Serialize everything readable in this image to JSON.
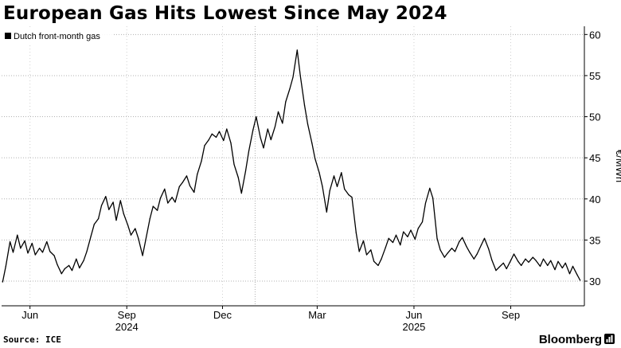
{
  "title": "European Gas Hits Lowest Since May 2024",
  "source": "Source: ICE",
  "brand": "Bloomberg",
  "chart_data": {
    "type": "line",
    "title": "European Gas Hits Lowest Since May 2024",
    "xlabel": "",
    "ylabel": "€/MWh",
    "y_axis_side": "right",
    "ylim": [
      27,
      61
    ],
    "yticks": [
      30,
      35,
      40,
      45,
      50,
      55,
      60
    ],
    "grid": "dotted",
    "legend": "top-left",
    "x_range": [
      "2024-05-05",
      "2025-11-10"
    ],
    "month_ticks": [
      {
        "label": "Jun",
        "date": "2024-06-01"
      },
      {
        "label": "Sep",
        "date": "2024-09-01"
      },
      {
        "label": "Dec",
        "date": "2024-12-01"
      },
      {
        "label": "Mar",
        "date": "2025-03-01"
      },
      {
        "label": "Jun",
        "date": "2025-06-01"
      },
      {
        "label": "Sep",
        "date": "2025-09-01"
      }
    ],
    "year_labels": [
      {
        "label": "2024",
        "date": "2024-09-01"
      },
      {
        "label": "2025",
        "date": "2025-06-01"
      }
    ],
    "series": [
      {
        "name": "Dutch front-month gas",
        "color": "#000000",
        "points": [
          [
            "2024-05-06",
            29.9
          ],
          [
            "2024-05-09",
            31.8
          ],
          [
            "2024-05-13",
            34.8
          ],
          [
            "2024-05-16",
            33.5
          ],
          [
            "2024-05-20",
            35.6
          ],
          [
            "2024-05-23",
            34.0
          ],
          [
            "2024-05-27",
            34.9
          ],
          [
            "2024-05-30",
            33.4
          ],
          [
            "2024-06-03",
            34.6
          ],
          [
            "2024-06-06",
            33.2
          ],
          [
            "2024-06-10",
            34.0
          ],
          [
            "2024-06-13",
            33.5
          ],
          [
            "2024-06-17",
            34.8
          ],
          [
            "2024-06-20",
            33.6
          ],
          [
            "2024-06-24",
            33.1
          ],
          [
            "2024-06-27",
            32.0
          ],
          [
            "2024-07-01",
            30.9
          ],
          [
            "2024-07-04",
            31.5
          ],
          [
            "2024-07-08",
            31.9
          ],
          [
            "2024-07-11",
            31.3
          ],
          [
            "2024-07-15",
            32.7
          ],
          [
            "2024-07-18",
            31.6
          ],
          [
            "2024-07-22",
            32.5
          ],
          [
            "2024-07-25",
            33.6
          ],
          [
            "2024-07-29",
            35.5
          ],
          [
            "2024-08-01",
            36.9
          ],
          [
            "2024-08-05",
            37.6
          ],
          [
            "2024-08-08",
            39.2
          ],
          [
            "2024-08-12",
            40.3
          ],
          [
            "2024-08-15",
            38.7
          ],
          [
            "2024-08-19",
            39.6
          ],
          [
            "2024-08-22",
            37.4
          ],
          [
            "2024-08-26",
            39.8
          ],
          [
            "2024-08-29",
            38.2
          ],
          [
            "2024-09-02",
            36.8
          ],
          [
            "2024-09-05",
            35.6
          ],
          [
            "2024-09-09",
            36.4
          ],
          [
            "2024-09-12",
            35.2
          ],
          [
            "2024-09-16",
            33.1
          ],
          [
            "2024-09-19",
            35.0
          ],
          [
            "2024-09-23",
            37.6
          ],
          [
            "2024-09-26",
            39.1
          ],
          [
            "2024-09-30",
            38.6
          ],
          [
            "2024-10-03",
            40.1
          ],
          [
            "2024-10-07",
            41.2
          ],
          [
            "2024-10-10",
            39.5
          ],
          [
            "2024-10-14",
            40.2
          ],
          [
            "2024-10-17",
            39.6
          ],
          [
            "2024-10-21",
            41.5
          ],
          [
            "2024-10-24",
            42.0
          ],
          [
            "2024-10-28",
            42.8
          ],
          [
            "2024-10-31",
            41.6
          ],
          [
            "2024-11-04",
            40.8
          ],
          [
            "2024-11-07",
            43.0
          ],
          [
            "2024-11-11",
            44.6
          ],
          [
            "2024-11-14",
            46.5
          ],
          [
            "2024-11-18",
            47.2
          ],
          [
            "2024-11-21",
            47.9
          ],
          [
            "2024-11-25",
            47.5
          ],
          [
            "2024-11-28",
            48.2
          ],
          [
            "2024-12-02",
            47.1
          ],
          [
            "2024-12-05",
            48.5
          ],
          [
            "2024-12-09",
            46.8
          ],
          [
            "2024-12-12",
            44.2
          ],
          [
            "2024-12-16",
            42.6
          ],
          [
            "2024-12-19",
            40.7
          ],
          [
            "2024-12-23",
            43.4
          ],
          [
            "2024-12-26",
            45.8
          ],
          [
            "2024-12-30",
            48.4
          ],
          [
            "2025-01-02",
            50.0
          ],
          [
            "2025-01-06",
            47.5
          ],
          [
            "2025-01-09",
            46.2
          ],
          [
            "2025-01-13",
            48.5
          ],
          [
            "2025-01-16",
            47.2
          ],
          [
            "2025-01-20",
            48.8
          ],
          [
            "2025-01-23",
            50.6
          ],
          [
            "2025-01-27",
            49.2
          ],
          [
            "2025-01-30",
            51.8
          ],
          [
            "2025-02-03",
            53.4
          ],
          [
            "2025-02-06",
            54.8
          ],
          [
            "2025-02-10",
            58.1
          ],
          [
            "2025-02-13",
            55.0
          ],
          [
            "2025-02-17",
            51.4
          ],
          [
            "2025-02-20",
            49.1
          ],
          [
            "2025-02-24",
            46.8
          ],
          [
            "2025-02-27",
            44.9
          ],
          [
            "2025-03-03",
            43.2
          ],
          [
            "2025-03-06",
            41.5
          ],
          [
            "2025-03-10",
            38.4
          ],
          [
            "2025-03-13",
            41.0
          ],
          [
            "2025-03-17",
            42.8
          ],
          [
            "2025-03-20",
            41.5
          ],
          [
            "2025-03-24",
            43.2
          ],
          [
            "2025-03-27",
            41.2
          ],
          [
            "2025-03-31",
            40.5
          ],
          [
            "2025-04-03",
            40.2
          ],
          [
            "2025-04-07",
            35.9
          ],
          [
            "2025-04-10",
            33.6
          ],
          [
            "2025-04-14",
            34.9
          ],
          [
            "2025-04-17",
            33.2
          ],
          [
            "2025-04-21",
            33.8
          ],
          [
            "2025-04-24",
            32.4
          ],
          [
            "2025-04-28",
            31.9
          ],
          [
            "2025-05-01",
            32.7
          ],
          [
            "2025-05-05",
            34.1
          ],
          [
            "2025-05-08",
            35.2
          ],
          [
            "2025-05-12",
            34.7
          ],
          [
            "2025-05-15",
            35.6
          ],
          [
            "2025-05-19",
            34.4
          ],
          [
            "2025-05-22",
            36.0
          ],
          [
            "2025-05-26",
            35.4
          ],
          [
            "2025-05-29",
            36.2
          ],
          [
            "2025-06-02",
            35.1
          ],
          [
            "2025-06-05",
            36.4
          ],
          [
            "2025-06-09",
            37.2
          ],
          [
            "2025-06-12",
            39.5
          ],
          [
            "2025-06-16",
            41.3
          ],
          [
            "2025-06-19",
            40.1
          ],
          [
            "2025-06-23",
            35.2
          ],
          [
            "2025-06-26",
            33.8
          ],
          [
            "2025-06-30",
            32.9
          ],
          [
            "2025-07-03",
            33.4
          ],
          [
            "2025-07-07",
            34.0
          ],
          [
            "2025-07-10",
            33.6
          ],
          [
            "2025-07-14",
            34.8
          ],
          [
            "2025-07-17",
            35.3
          ],
          [
            "2025-07-21",
            34.2
          ],
          [
            "2025-07-24",
            33.5
          ],
          [
            "2025-07-28",
            32.7
          ],
          [
            "2025-07-31",
            33.3
          ],
          [
            "2025-08-04",
            34.4
          ],
          [
            "2025-08-07",
            35.2
          ],
          [
            "2025-08-11",
            33.9
          ],
          [
            "2025-08-14",
            32.6
          ],
          [
            "2025-08-18",
            31.3
          ],
          [
            "2025-08-21",
            31.7
          ],
          [
            "2025-08-25",
            32.2
          ],
          [
            "2025-08-28",
            31.5
          ],
          [
            "2025-09-01",
            32.5
          ],
          [
            "2025-09-04",
            33.3
          ],
          [
            "2025-09-08",
            32.4
          ],
          [
            "2025-09-11",
            31.9
          ],
          [
            "2025-09-15",
            32.7
          ],
          [
            "2025-09-18",
            32.3
          ],
          [
            "2025-09-22",
            32.9
          ],
          [
            "2025-09-25",
            32.5
          ],
          [
            "2025-09-29",
            31.8
          ],
          [
            "2025-10-02",
            32.7
          ],
          [
            "2025-10-06",
            31.9
          ],
          [
            "2025-10-09",
            32.5
          ],
          [
            "2025-10-13",
            31.4
          ],
          [
            "2025-10-16",
            32.4
          ],
          [
            "2025-10-20",
            31.6
          ],
          [
            "2025-10-23",
            32.2
          ],
          [
            "2025-10-27",
            30.9
          ],
          [
            "2025-10-30",
            31.8
          ],
          [
            "2025-11-03",
            30.8
          ],
          [
            "2025-11-06",
            30.1
          ]
        ]
      }
    ]
  }
}
